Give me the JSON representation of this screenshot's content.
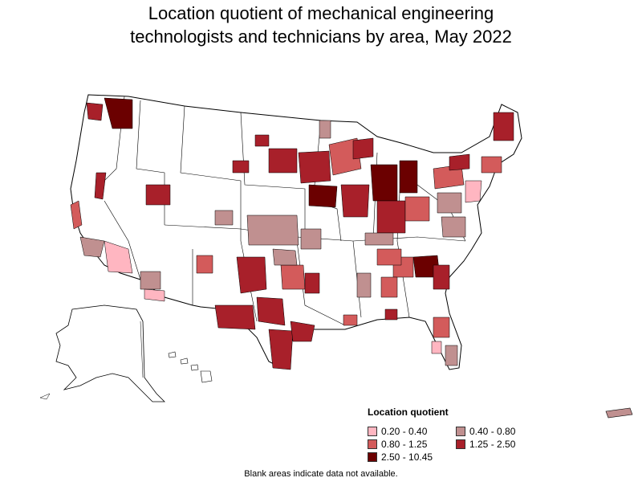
{
  "header": {
    "title_line1": "Location quotient of mechanical engineering",
    "title_line2": "technologists and technicians by area, May 2022"
  },
  "legend": {
    "title": "Location quotient",
    "items": [
      {
        "label": "0.20 - 0.40",
        "color": "#ffb6c1"
      },
      {
        "label": "0.40 - 0.80",
        "color": "#c09090"
      },
      {
        "label": "0.80 - 1.25",
        "color": "#d35b5b"
      },
      {
        "label": "1.25 - 2.50",
        "color": "#a8202a"
      },
      {
        "label": "2.50 - 10.45",
        "color": "#6b0000"
      }
    ]
  },
  "footer": {
    "note": "Blank areas indicate data not available."
  },
  "map": {
    "colors": {
      "no_data": "#ffffff",
      "border": "#000000"
    }
  }
}
